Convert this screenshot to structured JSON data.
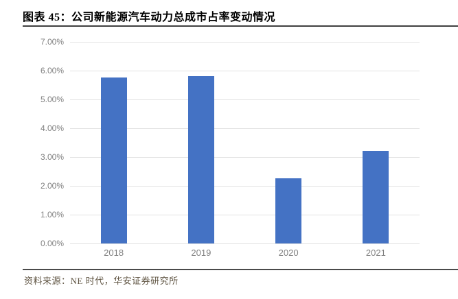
{
  "figure": {
    "title": "图表 45：公司新能源汽车动力总成市占率变动情况",
    "source": "资料来源：NE 时代，华安证券研究所"
  },
  "colors": {
    "bar": "#4472C4",
    "gridline": "#E2E2E2",
    "axis_label": "#808080",
    "title_text": "#000000",
    "title_rule": "#3F3F3F",
    "source_rule": "#4A4A4A",
    "source_text": "#5F5442",
    "background": "#FFFFFF"
  },
  "chart_data": {
    "type": "bar",
    "title": "公司新能源汽车动力总成市占率变动情况",
    "categories": [
      "2018",
      "2019",
      "2020",
      "2021"
    ],
    "values": [
      5.76,
      5.81,
      2.27,
      3.21
    ],
    "unit": "%",
    "xlabel": "",
    "ylabel": "",
    "ylim": [
      0,
      7
    ],
    "ytick_step": 1,
    "ytick_labels": [
      "7.00%",
      "6.00%",
      "5.00%",
      "4.00%",
      "3.00%",
      "2.00%",
      "1.00%",
      "0.00%"
    ],
    "grid": true,
    "legend_position": "none"
  }
}
